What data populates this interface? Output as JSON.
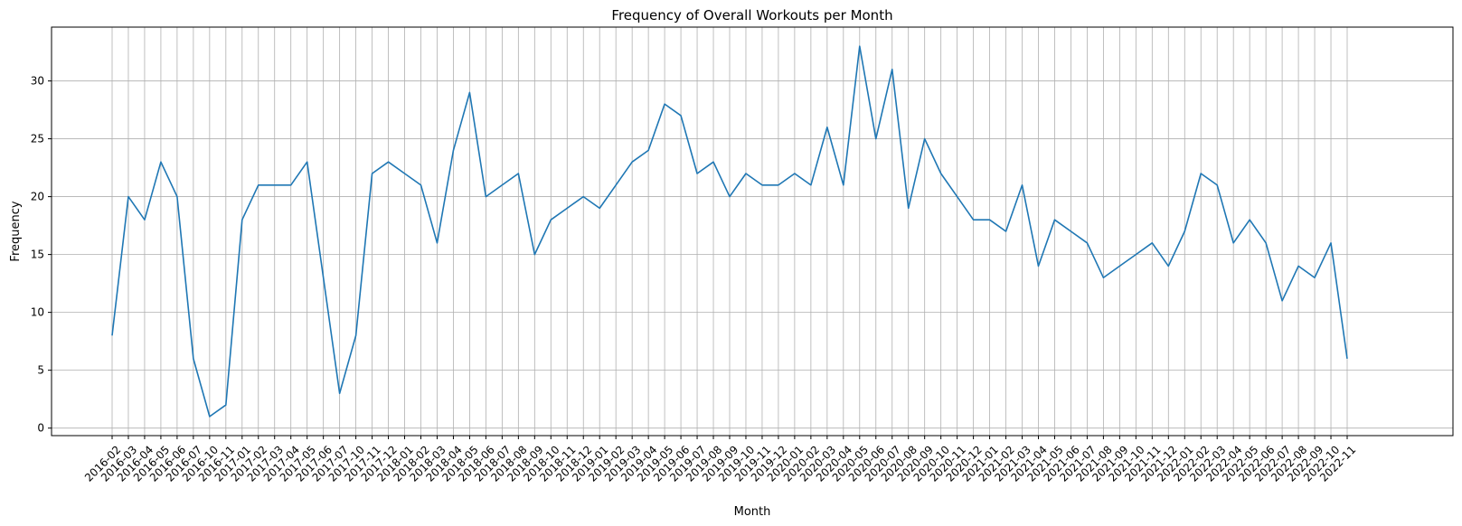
{
  "chart_data": {
    "type": "line",
    "title": "Frequency of Overall Workouts per Month",
    "xlabel": "Month",
    "ylabel": "Frequency",
    "ylim": [
      -0.65,
      34.65
    ],
    "yticks": [
      0,
      5,
      10,
      15,
      20,
      25,
      30
    ],
    "grid": true,
    "color": "#1f77b4",
    "categories": [
      "2016-02",
      "2016-03",
      "2016-04",
      "2016-05",
      "2016-06",
      "2016-07",
      "2016-10",
      "2016-11",
      "2017-01",
      "2017-02",
      "2017-03",
      "2017-04",
      "2017-05",
      "2017-06",
      "2017-07",
      "2017-10",
      "2017-11",
      "2017-12",
      "2018-01",
      "2018-02",
      "2018-03",
      "2018-04",
      "2018-05",
      "2018-06",
      "2018-07",
      "2018-08",
      "2018-09",
      "2018-10",
      "2018-11",
      "2018-12",
      "2019-01",
      "2019-02",
      "2019-03",
      "2019-04",
      "2019-05",
      "2019-06",
      "2019-07",
      "2019-08",
      "2019-09",
      "2019-10",
      "2019-11",
      "2019-12",
      "2020-01",
      "2020-02",
      "2020-03",
      "2020-04",
      "2020-05",
      "2020-06",
      "2020-07",
      "2020-08",
      "2020-09",
      "2020-10",
      "2020-11",
      "2020-12",
      "2021-01",
      "2021-02",
      "2021-03",
      "2021-04",
      "2021-05",
      "2021-06",
      "2021-07",
      "2021-08",
      "2021-09",
      "2021-10",
      "2021-11",
      "2021-12",
      "2022-01",
      "2022-02",
      "2022-03",
      "2022-04",
      "2022-05",
      "2022-06",
      "2022-07",
      "2022-08",
      "2022-09",
      "2022-10",
      "2022-11"
    ],
    "values": [
      8,
      20,
      18,
      23,
      20,
      6,
      1,
      2,
      18,
      21,
      21,
      21,
      23,
      13,
      3,
      8,
      22,
      23,
      22,
      21,
      16,
      24,
      29,
      20,
      21,
      22,
      15,
      18,
      19,
      20,
      19,
      21,
      23,
      24,
      28,
      27,
      22,
      23,
      20,
      22,
      21,
      21,
      22,
      21,
      26,
      21,
      33,
      25,
      31,
      19,
      25,
      22,
      20,
      18,
      18,
      17,
      21,
      14,
      18,
      17,
      16,
      13,
      14,
      15,
      16,
      14,
      17,
      22,
      21,
      16,
      18,
      16,
      11,
      14,
      13,
      16,
      6
    ]
  }
}
